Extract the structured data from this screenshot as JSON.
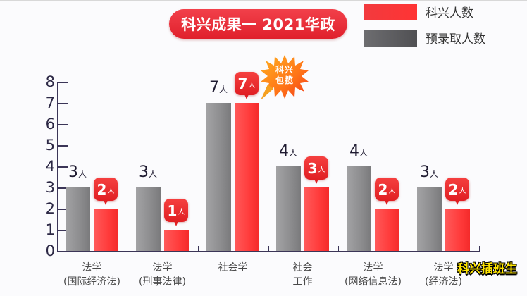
{
  "title": "科兴成果一 2021华政",
  "legend": [
    {
      "label": "科兴人数",
      "color": "#ff3838"
    },
    {
      "label": "预录取人数",
      "color": "#5a5a5c"
    }
  ],
  "unit": "人",
  "badge": {
    "line1": "科兴",
    "line2": "包揽"
  },
  "watermark": "科兴插班生",
  "y_ticks": [
    "0",
    "1",
    "2",
    "3",
    "4",
    "5",
    "6",
    "7",
    "8"
  ],
  "categories": [
    {
      "line1": "法学",
      "line2": "(国际经济法)",
      "gray": 3,
      "red": 2,
      "gray_label": "3",
      "red_label": "2"
    },
    {
      "line1": "法学",
      "line2": "(刑事法律)",
      "gray": 3,
      "red": 1,
      "gray_label": "3",
      "red_label": "1"
    },
    {
      "line1": "社会学",
      "line2": "",
      "gray": 7,
      "red": 7,
      "gray_label": "7",
      "red_label": "7"
    },
    {
      "line1": "社会",
      "line2": "工作",
      "gray": 4,
      "red": 3,
      "gray_label": "4",
      "red_label": "3"
    },
    {
      "line1": "法学",
      "line2": "(网络信息法)",
      "gray": 4,
      "red": 2,
      "gray_label": "4",
      "red_label": "2"
    },
    {
      "line1": "法学",
      "line2": "(经济法)",
      "gray": 3,
      "red": 2,
      "gray_label": "3",
      "red_label": "2"
    }
  ],
  "chart_data": {
    "type": "bar",
    "title": "科兴成果一 2021华政",
    "categories": [
      "法学(国际经济法)",
      "法学(刑事法律)",
      "社会学",
      "社会工作",
      "法学(网络信息法)",
      "法学(经济法)"
    ],
    "series": [
      {
        "name": "预录取人数",
        "values": [
          3,
          3,
          7,
          4,
          4,
          3
        ],
        "color": "#8e8e90"
      },
      {
        "name": "科兴人数",
        "values": [
          2,
          1,
          7,
          3,
          2,
          2
        ],
        "color": "#ff3b3b"
      }
    ],
    "xlabel": "",
    "ylabel": "",
    "ylim": [
      0,
      8
    ],
    "yticks": [
      0,
      1,
      2,
      3,
      4,
      5,
      6,
      7,
      8
    ],
    "data_label_unit": "人",
    "legend_position": "top-right",
    "grid": false,
    "annotations": [
      "科兴包揽"
    ]
  }
}
